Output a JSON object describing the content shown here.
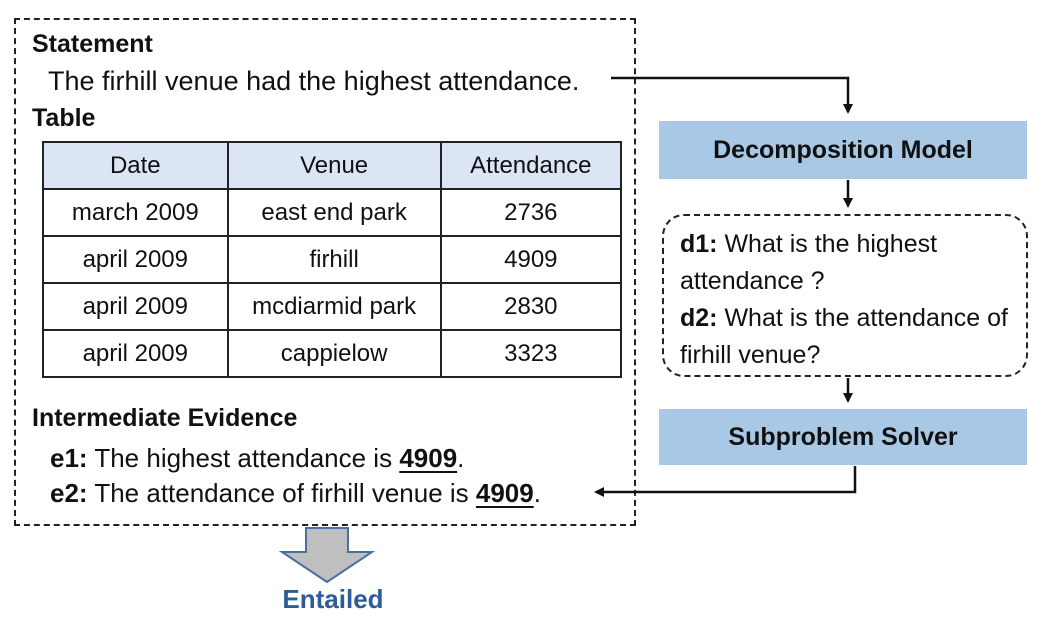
{
  "statement": {
    "heading": "Statement",
    "text": "The firhill venue had the highest attendance."
  },
  "table": {
    "heading": "Table",
    "columns": [
      "Date",
      "Venue",
      "Attendance"
    ],
    "rows": [
      [
        "march 2009",
        "east end park",
        "2736"
      ],
      [
        "april 2009",
        "firhill",
        "4909"
      ],
      [
        "april 2009",
        "mcdiarmid park",
        "2830"
      ],
      [
        "april 2009",
        "cappielow",
        "3323"
      ]
    ]
  },
  "evidence": {
    "heading": "Intermediate Evidence",
    "items": [
      {
        "tag": "e1:",
        "text": " The highest attendance is ",
        "value": "4909",
        "end": "."
      },
      {
        "tag": "e2:",
        "text": " The attendance of firhill venue is ",
        "value": "4909",
        "end": "."
      }
    ]
  },
  "decomposition_model": "Decomposition Model",
  "questions": [
    {
      "tag": "d1:",
      "text": " What is the highest attendance ?"
    },
    {
      "tag": "d2:",
      "text": " What is the attendance of firhill venue?"
    }
  ],
  "subproblem_solver": "Subproblem Solver",
  "result": "Entailed",
  "colors": {
    "box_fill": "#a9c8e6",
    "table_header": "#dce5f4",
    "result_arrow_fill": "#bfbfbf",
    "result_arrow_stroke": "#4a6fa5",
    "result_text": "#2e5c99"
  }
}
